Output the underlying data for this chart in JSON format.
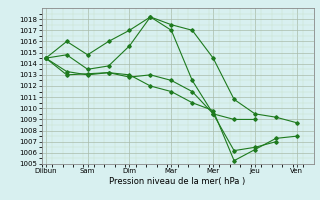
{
  "title": "",
  "xlabel": "Pression niveau de la mer( hPa )",
  "day_labels": [
    "Diibun",
    "Sam",
    "Dim",
    "Mar",
    "Mer",
    "Jeu",
    "Ven"
  ],
  "day_positions": [
    0,
    2,
    4,
    6,
    8,
    10,
    12
  ],
  "ylim": [
    1005,
    1019
  ],
  "yticks": [
    1005,
    1006,
    1007,
    1008,
    1009,
    1010,
    1011,
    1012,
    1013,
    1014,
    1015,
    1016,
    1017,
    1018
  ],
  "xlim": [
    -0.2,
    12.8
  ],
  "line_color": "#1e7a1e",
  "bg_color": "#d8f0f0",
  "grid_major_color": "#aabbaa",
  "grid_minor_color": "#c8e0c8",
  "line1": {
    "x": [
      0,
      1,
      2,
      3,
      4,
      5,
      6,
      7,
      8,
      9,
      10,
      11,
      12
    ],
    "y": [
      1014.5,
      1016.0,
      1014.8,
      1016.0,
      1017.0,
      1018.2,
      1017.5,
      1017.0,
      1014.5,
      1010.8,
      1009.5,
      1009.2,
      1008.7
    ]
  },
  "line2": {
    "x": [
      0,
      1,
      2,
      3,
      4,
      5,
      6,
      7,
      8,
      9,
      10
    ],
    "y": [
      1014.5,
      1014.8,
      1013.5,
      1013.8,
      1015.6,
      1018.2,
      1017.0,
      1012.5,
      1009.5,
      1009.0,
      1009.0
    ]
  },
  "line3": {
    "x": [
      0,
      1,
      2,
      3,
      4,
      5,
      6,
      7,
      8,
      9,
      10,
      11
    ],
    "y": [
      1014.5,
      1013.3,
      1013.0,
      1013.2,
      1012.8,
      1013.0,
      1012.5,
      1011.5,
      1009.5,
      1006.2,
      1006.5,
      1007.0
    ]
  },
  "line4": {
    "x": [
      0,
      1,
      2,
      3,
      4,
      5,
      6,
      7,
      8,
      9,
      10,
      11,
      12
    ],
    "y": [
      1014.5,
      1013.0,
      1013.1,
      1013.2,
      1013.0,
      1012.0,
      1011.5,
      1010.5,
      1009.8,
      1005.3,
      1006.3,
      1007.3,
      1007.5
    ]
  },
  "label_fontsize": 5.0,
  "xlabel_fontsize": 6.0
}
